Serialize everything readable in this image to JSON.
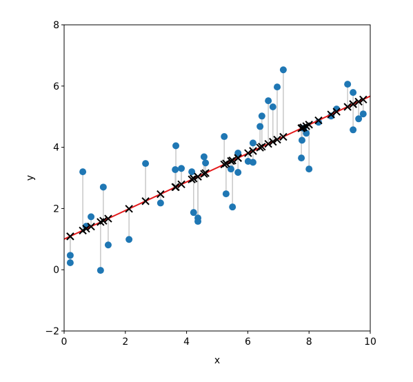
{
  "chart_data": {
    "type": "scatter",
    "x_label": "x",
    "y_label": "y",
    "xlim": [
      0,
      10
    ],
    "ylim": [
      -2,
      8
    ],
    "xticks": [
      0,
      2,
      4,
      6,
      8,
      10
    ],
    "yticks": [
      {
        "value": -2,
        "label": "−2"
      },
      0,
      2,
      4,
      6,
      8
    ],
    "residual_color": "#c8c8c8",
    "series": [
      {
        "marker": "circle",
        "color": "#1f77b4",
        "x": [
          0.2,
          0.2,
          0.61,
          0.72,
          0.88,
          1.19,
          1.28,
          1.44,
          2.12,
          2.66,
          3.15,
          3.63,
          3.65,
          3.83,
          4.17,
          4.23,
          4.37,
          4.37,
          4.57,
          4.62,
          5.23,
          5.29,
          5.45,
          5.5,
          5.68,
          5.68,
          6.01,
          6.17,
          6.17,
          6.4,
          6.46,
          6.67,
          6.82,
          6.96,
          7.16,
          7.75,
          7.77,
          7.82,
          7.91,
          8.0,
          8.31,
          8.72,
          8.9,
          9.26,
          9.44,
          9.44,
          9.62,
          9.77
        ],
        "values": [
          0.47,
          0.23,
          3.2,
          1.42,
          1.73,
          -0.02,
          2.7,
          0.81,
          0.99,
          3.47,
          2.18,
          3.27,
          4.05,
          3.31,
          3.2,
          1.87,
          1.69,
          1.58,
          3.69,
          3.49,
          4.35,
          2.48,
          3.29,
          2.05,
          3.81,
          3.18,
          3.54,
          4.14,
          3.51,
          4.68,
          5.02,
          5.52,
          5.32,
          5.97,
          6.53,
          3.65,
          4.23,
          4.62,
          4.46,
          3.29,
          4.82,
          5.02,
          5.25,
          6.06,
          5.79,
          4.57,
          4.93,
          5.09
        ]
      },
      {
        "marker": "x",
        "color": "#000000",
        "x": [
          0.2,
          0.2,
          0.61,
          0.72,
          0.88,
          1.19,
          1.28,
          1.44,
          2.12,
          2.66,
          3.15,
          3.63,
          3.65,
          3.83,
          4.17,
          4.23,
          4.37,
          4.37,
          4.57,
          4.62,
          5.23,
          5.29,
          5.45,
          5.5,
          5.68,
          5.68,
          6.01,
          6.17,
          6.17,
          6.4,
          6.46,
          6.67,
          6.82,
          6.96,
          7.16,
          7.75,
          7.77,
          7.82,
          7.91,
          8.0,
          8.31,
          8.72,
          8.9,
          9.26,
          9.44,
          9.44,
          9.62,
          9.77
        ],
        "values": [
          1.09,
          1.09,
          1.28,
          1.34,
          1.41,
          1.56,
          1.6,
          1.67,
          1.99,
          2.24,
          2.47,
          2.7,
          2.7,
          2.79,
          2.95,
          2.98,
          3.04,
          3.04,
          3.13,
          3.16,
          3.44,
          3.47,
          3.55,
          3.57,
          3.65,
          3.65,
          3.81,
          3.88,
          3.88,
          3.99,
          4.02,
          4.11,
          4.18,
          4.25,
          4.34,
          4.62,
          4.63,
          4.65,
          4.69,
          4.74,
          4.88,
          5.07,
          5.16,
          5.32,
          5.41,
          5.41,
          5.49,
          5.56
        ]
      },
      {
        "marker": "line",
        "color": "#e41a1c",
        "x": [
          0,
          10
        ],
        "values": [
          1.0,
          5.67
        ]
      }
    ]
  }
}
